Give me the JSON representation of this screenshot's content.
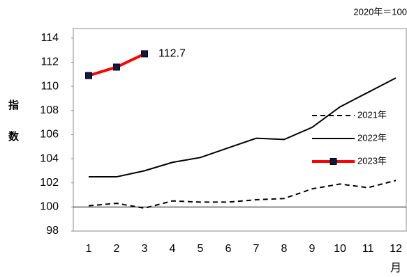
{
  "chart_data": {
    "type": "line",
    "unit_note": "2020年＝100",
    "y_label": "指数",
    "x_label": "月",
    "categories": [
      "1",
      "2",
      "3",
      "4",
      "5",
      "6",
      "7",
      "8",
      "9",
      "10",
      "11",
      "12"
    ],
    "series": [
      {
        "name": "2021年",
        "color": "#000000",
        "dash": true,
        "marker": false,
        "values": [
          100.1,
          100.3,
          99.9,
          100.5,
          100.4,
          100.4,
          100.6,
          100.7,
          101.5,
          101.9,
          101.6,
          102.2
        ]
      },
      {
        "name": "2022年",
        "color": "#000000",
        "dash": false,
        "marker": false,
        "values": [
          102.5,
          102.5,
          103.0,
          103.7,
          104.1,
          104.9,
          105.7,
          105.6,
          106.6,
          108.3,
          109.5,
          110.7
        ]
      },
      {
        "name": "2023年",
        "color": "#ff0000",
        "dash": false,
        "marker": true,
        "marker_color": "#0a1a4a",
        "values": [
          110.9,
          111.6,
          112.7,
          null,
          null,
          null,
          null,
          null,
          null,
          null,
          null,
          null
        ],
        "labeled_point": 2
      }
    ],
    "reference_line": 100,
    "ylim": [
      98,
      114.8
    ],
    "yticks": [
      98,
      100,
      102,
      104,
      106,
      108,
      110,
      112,
      114
    ],
    "grid": false,
    "legend": "right"
  }
}
